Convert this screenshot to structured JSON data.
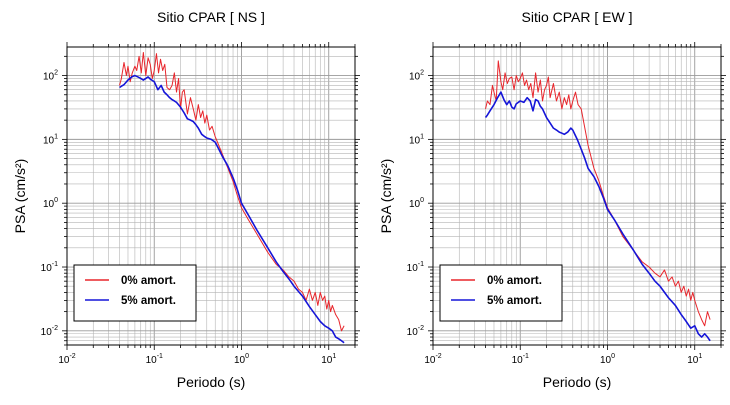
{
  "chart_data": [
    {
      "type": "line",
      "title": "Sitio CPAR [ NS ]",
      "xlabel": "Periodo (s)",
      "ylabel": "PSA (cm/s²)",
      "xscale": "log",
      "yscale": "log",
      "xlim": [
        0.01,
        20
      ],
      "ylim": [
        0.006,
        280
      ],
      "grid": true,
      "legend_position": "bottom-left",
      "xticks": [
        {
          "base": "10",
          "exp": "-2"
        },
        {
          "base": "10",
          "exp": "-1"
        },
        {
          "base": "10",
          "exp": "0"
        },
        {
          "base": "10",
          "exp": "1"
        }
      ],
      "yticks": [
        {
          "base": "10",
          "exp": "-2"
        },
        {
          "base": "10",
          "exp": "-1"
        },
        {
          "base": "10",
          "exp": "0"
        },
        {
          "base": "10",
          "exp": "1"
        },
        {
          "base": "10",
          "exp": "2"
        }
      ],
      "series": [
        {
          "name": "0% amort.",
          "color": "#e8262c",
          "x": [
            0.04,
            0.042,
            0.045,
            0.048,
            0.05,
            0.053,
            0.056,
            0.06,
            0.063,
            0.067,
            0.071,
            0.075,
            0.08,
            0.085,
            0.09,
            0.095,
            0.1,
            0.106,
            0.112,
            0.118,
            0.125,
            0.132,
            0.14,
            0.15,
            0.16,
            0.17,
            0.18,
            0.19,
            0.2,
            0.21,
            0.22,
            0.24,
            0.26,
            0.28,
            0.3,
            0.32,
            0.34,
            0.36,
            0.38,
            0.4,
            0.43,
            0.46,
            0.5,
            0.55,
            0.6,
            0.7,
            0.8,
            0.9,
            1.0,
            1.2,
            1.5,
            2.0,
            2.5,
            3.0,
            3.5,
            4.0,
            4.5,
            5.0,
            5.5,
            6.0,
            6.5,
            7.0,
            7.5,
            8.0,
            8.5,
            9.0,
            9.5,
            10.0,
            10.5,
            11.0,
            12.0,
            13.0,
            14.0,
            15.0
          ],
          "y": [
            70,
            90,
            160,
            100,
            140,
            80,
            110,
            140,
            120,
            200,
            110,
            230,
            100,
            190,
            150,
            90,
            120,
            220,
            110,
            180,
            120,
            150,
            65,
            60,
            70,
            110,
            55,
            90,
            30,
            55,
            60,
            25,
            45,
            30,
            20,
            35,
            22,
            28,
            18,
            24,
            14,
            16,
            11,
            8,
            6,
            3.5,
            2.2,
            1.3,
            0.85,
            0.55,
            0.33,
            0.17,
            0.11,
            0.09,
            0.07,
            0.06,
            0.045,
            0.04,
            0.03,
            0.045,
            0.03,
            0.04,
            0.025,
            0.04,
            0.03,
            0.035,
            0.022,
            0.03,
            0.02,
            0.025,
            0.018,
            0.015,
            0.01,
            0.012
          ]
        },
        {
          "name": "5% amort.",
          "color": "#1515d8",
          "x": [
            0.04,
            0.042,
            0.045,
            0.05,
            0.055,
            0.06,
            0.065,
            0.07,
            0.075,
            0.08,
            0.085,
            0.09,
            0.1,
            0.11,
            0.12,
            0.13,
            0.14,
            0.15,
            0.16,
            0.17,
            0.18,
            0.2,
            0.22,
            0.24,
            0.26,
            0.28,
            0.3,
            0.32,
            0.35,
            0.38,
            0.4,
            0.45,
            0.5,
            0.55,
            0.6,
            0.7,
            0.8,
            0.9,
            1.0,
            1.2,
            1.5,
            2.0,
            2.5,
            3.0,
            3.5,
            4.0,
            5.0,
            6.0,
            7.0,
            8.0,
            9.0,
            10.0,
            11.0,
            12.0,
            13.0,
            14.0,
            15.0
          ],
          "y": [
            65,
            68,
            72,
            85,
            95,
            100,
            95,
            90,
            85,
            90,
            95,
            88,
            80,
            60,
            70,
            55,
            50,
            45,
            42,
            40,
            38,
            32,
            26,
            21,
            20,
            19,
            17,
            15,
            12,
            11,
            10.5,
            10,
            9,
            7,
            5.5,
            3.8,
            2.5,
            1.6,
            1.0,
            0.65,
            0.38,
            0.2,
            0.12,
            0.085,
            0.065,
            0.05,
            0.035,
            0.024,
            0.018,
            0.014,
            0.012,
            0.011,
            0.01,
            0.008,
            0.0075,
            0.007,
            0.0065
          ]
        }
      ]
    },
    {
      "type": "line",
      "title": "Sitio CPAR [ EW ]",
      "xlabel": "Periodo (s)",
      "ylabel": "PSA (cm/s²)",
      "xscale": "log",
      "yscale": "log",
      "xlim": [
        0.01,
        20
      ],
      "ylim": [
        0.006,
        280
      ],
      "grid": true,
      "legend_position": "bottom-left",
      "xticks": [
        {
          "base": "10",
          "exp": "-2"
        },
        {
          "base": "10",
          "exp": "-1"
        },
        {
          "base": "10",
          "exp": "0"
        },
        {
          "base": "10",
          "exp": "1"
        }
      ],
      "yticks": [
        {
          "base": "10",
          "exp": "-2"
        },
        {
          "base": "10",
          "exp": "-1"
        },
        {
          "base": "10",
          "exp": "0"
        },
        {
          "base": "10",
          "exp": "1"
        },
        {
          "base": "10",
          "exp": "2"
        }
      ],
      "series": [
        {
          "name": "0% amort.",
          "color": "#e8262c",
          "x": [
            0.04,
            0.042,
            0.045,
            0.048,
            0.05,
            0.053,
            0.056,
            0.06,
            0.063,
            0.067,
            0.071,
            0.075,
            0.08,
            0.085,
            0.09,
            0.095,
            0.1,
            0.106,
            0.112,
            0.118,
            0.125,
            0.132,
            0.14,
            0.15,
            0.16,
            0.17,
            0.18,
            0.19,
            0.2,
            0.21,
            0.22,
            0.24,
            0.26,
            0.28,
            0.3,
            0.32,
            0.34,
            0.36,
            0.38,
            0.4,
            0.43,
            0.46,
            0.5,
            0.55,
            0.6,
            0.7,
            0.8,
            0.9,
            1.0,
            1.2,
            1.5,
            2.0,
            2.5,
            3.0,
            3.5,
            4.0,
            4.5,
            5.0,
            5.5,
            6.0,
            6.5,
            7.0,
            7.5,
            8.0,
            8.5,
            9.0,
            9.5,
            10.0,
            11.0,
            12.0,
            13.0,
            14.0,
            15.0
          ],
          "y": [
            30,
            40,
            35,
            70,
            55,
            40,
            170,
            80,
            60,
            110,
            75,
            90,
            95,
            60,
            100,
            80,
            90,
            110,
            70,
            85,
            60,
            75,
            45,
            110,
            55,
            85,
            40,
            60,
            70,
            95,
            45,
            75,
            40,
            55,
            30,
            45,
            35,
            50,
            30,
            40,
            55,
            35,
            30,
            15,
            8,
            3.5,
            2.2,
            1.3,
            0.85,
            0.55,
            0.3,
            0.18,
            0.12,
            0.1,
            0.08,
            0.07,
            0.09,
            0.06,
            0.07,
            0.05,
            0.06,
            0.04,
            0.05,
            0.035,
            0.045,
            0.03,
            0.04,
            0.03,
            0.02,
            0.015,
            0.012,
            0.02,
            0.015
          ]
        },
        {
          "name": "5% amort.",
          "color": "#1515d8",
          "x": [
            0.04,
            0.042,
            0.045,
            0.05,
            0.055,
            0.06,
            0.065,
            0.07,
            0.075,
            0.08,
            0.085,
            0.09,
            0.1,
            0.11,
            0.12,
            0.13,
            0.14,
            0.15,
            0.16,
            0.17,
            0.18,
            0.2,
            0.22,
            0.24,
            0.26,
            0.28,
            0.3,
            0.32,
            0.35,
            0.38,
            0.4,
            0.45,
            0.5,
            0.55,
            0.6,
            0.7,
            0.8,
            0.9,
            1.0,
            1.2,
            1.5,
            2.0,
            2.5,
            3.0,
            3.5,
            4.0,
            5.0,
            6.0,
            7.0,
            8.0,
            9.0,
            10.0,
            11.0,
            12.0,
            13.0,
            14.0,
            15.0
          ],
          "y": [
            22,
            24,
            28,
            35,
            45,
            55,
            42,
            35,
            40,
            32,
            30,
            36,
            40,
            38,
            45,
            40,
            28,
            42,
            40,
            33,
            30,
            22,
            18,
            15,
            14,
            13,
            12.5,
            12,
            13,
            15,
            14,
            10,
            7,
            5,
            3.5,
            2.6,
            1.8,
            1.2,
            0.8,
            0.55,
            0.33,
            0.18,
            0.11,
            0.08,
            0.06,
            0.05,
            0.033,
            0.025,
            0.018,
            0.014,
            0.011,
            0.012,
            0.009,
            0.008,
            0.009,
            0.008,
            0.007
          ]
        }
      ]
    }
  ]
}
